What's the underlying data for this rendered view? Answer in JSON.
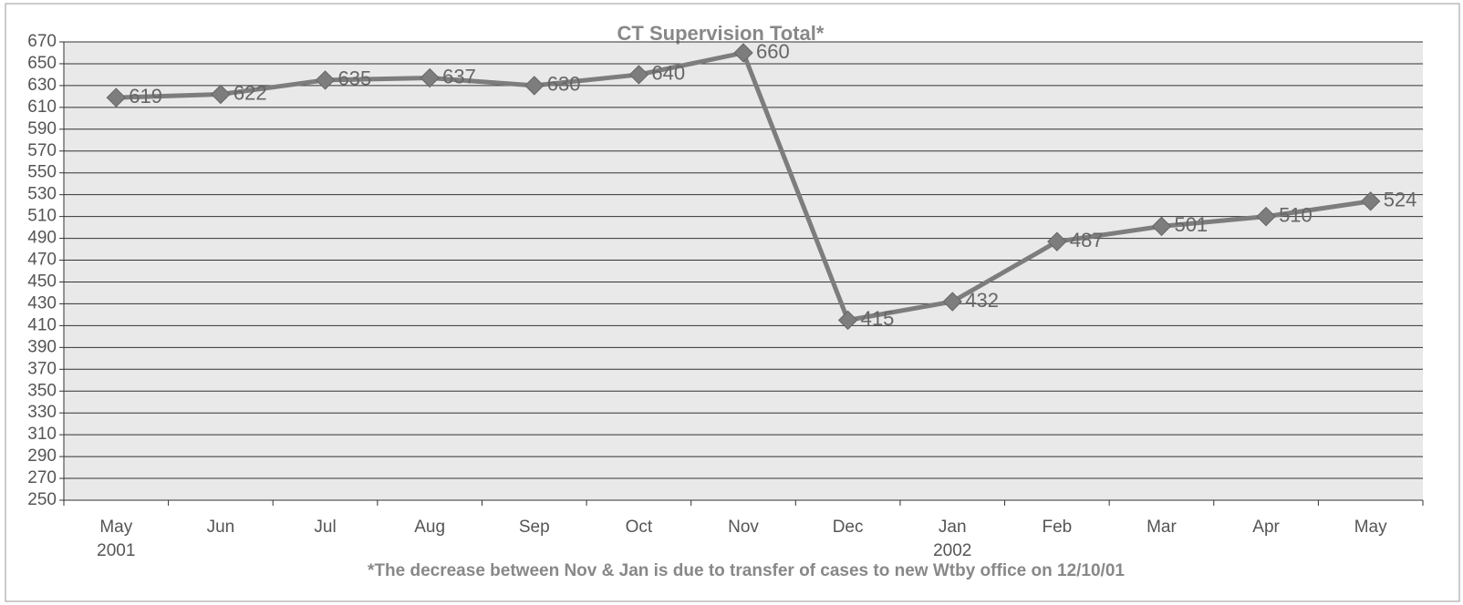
{
  "chart_data": {
    "type": "line",
    "title": "CT Supervision Total*",
    "annotation": "*The decrease between Nov & Jan is due to transfer of cases to new Wtby office on 12/10/01",
    "categories": [
      "May 2001",
      "Jun",
      "Jul",
      "Aug",
      "Sep",
      "Oct",
      "Nov",
      "Dec",
      "Jan 2002",
      "Feb",
      "Mar",
      "Apr",
      "May"
    ],
    "series": [
      {
        "name": "CT Supervision Total",
        "color": "#7d7d7d",
        "values": [
          619,
          622,
          635,
          637,
          630,
          640,
          660,
          415,
          432,
          487,
          501,
          510,
          524
        ]
      }
    ],
    "ylim": [
      250,
      670
    ],
    "yticks": [
      250,
      270,
      290,
      310,
      330,
      350,
      370,
      390,
      410,
      430,
      450,
      470,
      490,
      510,
      530,
      550,
      570,
      590,
      610,
      630,
      650,
      670
    ],
    "grid": true
  }
}
